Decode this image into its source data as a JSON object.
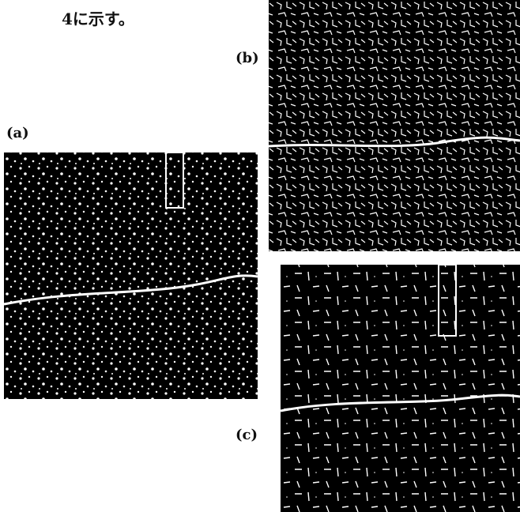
{
  "body": {
    "text": "4に示す。"
  },
  "figures": [
    {
      "label": "(a)"
    },
    {
      "label": "(b)"
    },
    {
      "label": "(c)"
    }
  ]
}
